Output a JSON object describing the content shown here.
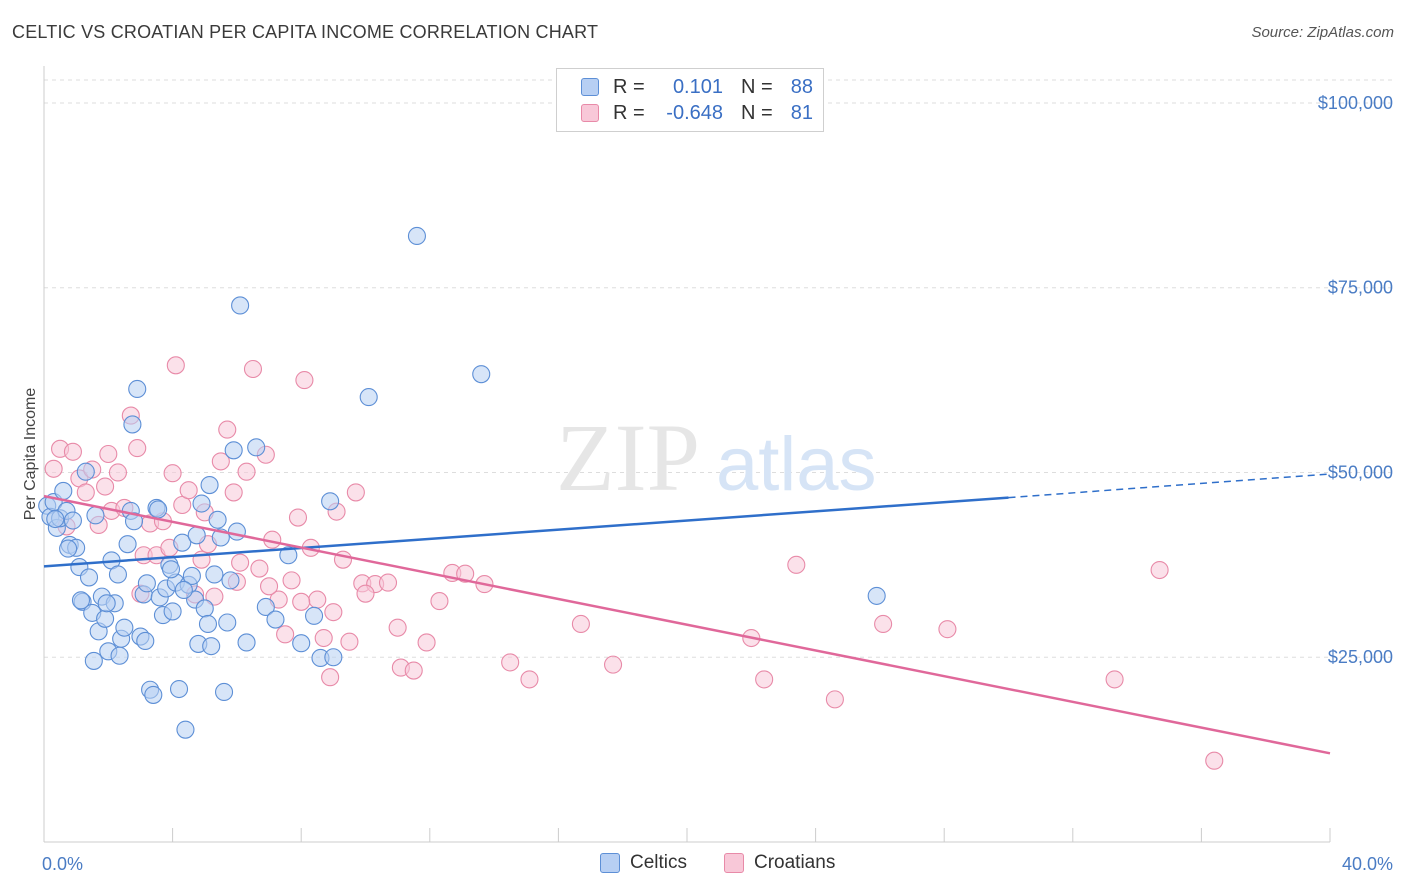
{
  "title": "CELTIC VS CROATIAN PER CAPITA INCOME CORRELATION CHART",
  "source": "Source: ZipAtlas.com",
  "watermark": {
    "zip": "ZIP",
    "atlas": "atlas"
  },
  "legend_stats": [
    {
      "r_label": "R =",
      "r_value": "0.101",
      "n_label": "N =",
      "n_value": "88"
    },
    {
      "r_label": "R =",
      "r_value": "-0.648",
      "n_label": "N =",
      "n_value": "81"
    }
  ],
  "colors": {
    "celtics_fill": "#b7cff3",
    "celtics_stroke": "#5d8fd6",
    "celtics_line": "#2f6fca",
    "croatians_fill": "#f8c8d8",
    "croatians_stroke": "#e88aa8",
    "croatians_line": "#e0689a",
    "tick_label": "#4a7cc4",
    "grid": "#dddddd"
  },
  "chart_data": {
    "type": "scatter",
    "title": "CELTIC VS CROATIAN PER CAPITA INCOME CORRELATION CHART",
    "xlabel": "",
    "ylabel": "Per Capita Income",
    "xlim": [
      0,
      40
    ],
    "ylim": [
      0,
      105000
    ],
    "x_tick_labels": [
      "0.0%",
      "40.0%"
    ],
    "y_ticks": [
      25000,
      50000,
      75000,
      100000
    ],
    "y_tick_labels": [
      "$25,000",
      "$50,000",
      "$75,000",
      "$100,000"
    ],
    "grid": true,
    "legend_position": "bottom",
    "series": [
      {
        "name": "Celtics",
        "r": 0.101,
        "n": 88,
        "trend": {
          "x": [
            0,
            30,
            40
          ],
          "y": [
            37300,
            46600,
            49800
          ],
          "dashed_after_x": 30
        },
        "points": [
          [
            0.1,
            45500
          ],
          [
            0.2,
            44000
          ],
          [
            0.3,
            46000
          ],
          [
            0.4,
            42500
          ],
          [
            0.5,
            43800
          ],
          [
            0.6,
            47500
          ],
          [
            0.7,
            44800
          ],
          [
            0.8,
            40200
          ],
          [
            0.9,
            43500
          ],
          [
            1.0,
            39800
          ],
          [
            1.1,
            37200
          ],
          [
            1.2,
            32500
          ],
          [
            1.3,
            50100
          ],
          [
            1.4,
            35800
          ],
          [
            1.5,
            31000
          ],
          [
            1.6,
            44200
          ],
          [
            1.7,
            28500
          ],
          [
            1.8,
            33200
          ],
          [
            1.9,
            30200
          ],
          [
            2.0,
            25800
          ],
          [
            2.1,
            38100
          ],
          [
            2.2,
            32300
          ],
          [
            2.3,
            36200
          ],
          [
            2.4,
            27500
          ],
          [
            2.5,
            29000
          ],
          [
            2.6,
            40300
          ],
          [
            2.7,
            44800
          ],
          [
            2.8,
            43400
          ],
          [
            2.9,
            61300
          ],
          [
            3.0,
            27800
          ],
          [
            3.1,
            33500
          ],
          [
            3.2,
            35000
          ],
          [
            3.3,
            20600
          ],
          [
            3.4,
            19900
          ],
          [
            3.5,
            45200
          ],
          [
            3.6,
            33100
          ],
          [
            3.7,
            30700
          ],
          [
            3.8,
            34300
          ],
          [
            3.9,
            37500
          ],
          [
            4.0,
            31200
          ],
          [
            4.1,
            35100
          ],
          [
            4.2,
            20700
          ],
          [
            4.3,
            40500
          ],
          [
            4.4,
            15200
          ],
          [
            4.5,
            34800
          ],
          [
            4.6,
            36000
          ],
          [
            4.7,
            32800
          ],
          [
            4.8,
            26800
          ],
          [
            4.9,
            45800
          ],
          [
            5.0,
            31600
          ],
          [
            5.1,
            29500
          ],
          [
            5.2,
            26500
          ],
          [
            5.3,
            36200
          ],
          [
            5.4,
            43600
          ],
          [
            5.5,
            41200
          ],
          [
            5.6,
            20300
          ],
          [
            5.7,
            29700
          ],
          [
            5.8,
            35400
          ],
          [
            5.9,
            53000
          ],
          [
            6.0,
            42000
          ],
          [
            6.1,
            72600
          ],
          [
            6.3,
            27000
          ],
          [
            6.6,
            53400
          ],
          [
            6.9,
            31800
          ],
          [
            7.2,
            30100
          ],
          [
            7.6,
            38800
          ],
          [
            8.0,
            26900
          ],
          [
            8.4,
            30600
          ],
          [
            8.9,
            46100
          ],
          [
            10.1,
            60200
          ],
          [
            11.6,
            82000
          ],
          [
            13.6,
            63300
          ],
          [
            25.9,
            33300
          ],
          [
            0.35,
            43700
          ],
          [
            0.75,
            39700
          ],
          [
            1.15,
            32700
          ],
          [
            1.55,
            24500
          ],
          [
            1.95,
            32300
          ],
          [
            2.35,
            25200
          ],
          [
            2.75,
            56500
          ],
          [
            3.15,
            27200
          ],
          [
            3.55,
            45000
          ],
          [
            3.95,
            36900
          ],
          [
            4.35,
            34100
          ],
          [
            4.75,
            41500
          ],
          [
            5.15,
            48300
          ],
          [
            8.6,
            24900
          ],
          [
            9.0,
            25000
          ]
        ]
      },
      {
        "name": "Croatians",
        "r": -0.648,
        "n": 81,
        "trend": {
          "x": [
            0,
            40
          ],
          "y": [
            46800,
            12000
          ]
        },
        "points": [
          [
            0.3,
            50500
          ],
          [
            0.5,
            53200
          ],
          [
            0.7,
            42700
          ],
          [
            0.9,
            52800
          ],
          [
            1.1,
            49200
          ],
          [
            1.3,
            47300
          ],
          [
            1.5,
            50400
          ],
          [
            1.7,
            42900
          ],
          [
            1.9,
            48100
          ],
          [
            2.1,
            44800
          ],
          [
            2.3,
            50000
          ],
          [
            2.5,
            45200
          ],
          [
            2.7,
            57700
          ],
          [
            2.9,
            53300
          ],
          [
            3.1,
            38800
          ],
          [
            3.3,
            43100
          ],
          [
            3.5,
            38800
          ],
          [
            3.7,
            43400
          ],
          [
            3.9,
            39800
          ],
          [
            4.1,
            64500
          ],
          [
            4.3,
            45600
          ],
          [
            4.5,
            47600
          ],
          [
            4.7,
            33500
          ],
          [
            4.9,
            38200
          ],
          [
            5.1,
            40300
          ],
          [
            5.3,
            33200
          ],
          [
            5.5,
            51500
          ],
          [
            5.7,
            55800
          ],
          [
            5.9,
            47300
          ],
          [
            6.1,
            37800
          ],
          [
            6.3,
            50100
          ],
          [
            6.5,
            64000
          ],
          [
            6.7,
            37000
          ],
          [
            6.9,
            52400
          ],
          [
            7.1,
            40900
          ],
          [
            7.3,
            32800
          ],
          [
            7.5,
            28100
          ],
          [
            7.7,
            35400
          ],
          [
            7.9,
            43900
          ],
          [
            8.1,
            62500
          ],
          [
            8.3,
            39800
          ],
          [
            8.5,
            32800
          ],
          [
            8.7,
            27600
          ],
          [
            8.9,
            22300
          ],
          [
            9.1,
            44700
          ],
          [
            9.3,
            38200
          ],
          [
            9.5,
            27100
          ],
          [
            9.7,
            47300
          ],
          [
            9.9,
            35000
          ],
          [
            10.3,
            34900
          ],
          [
            10.7,
            35100
          ],
          [
            11.1,
            23600
          ],
          [
            11.5,
            23200
          ],
          [
            11.9,
            27000
          ],
          [
            12.3,
            32600
          ],
          [
            12.7,
            36400
          ],
          [
            13.1,
            36300
          ],
          [
            13.7,
            34900
          ],
          [
            14.5,
            24300
          ],
          [
            15.1,
            22000
          ],
          [
            16.7,
            29500
          ],
          [
            17.7,
            24000
          ],
          [
            22.0,
            27600
          ],
          [
            22.4,
            22000
          ],
          [
            23.4,
            37500
          ],
          [
            24.6,
            19300
          ],
          [
            26.1,
            29500
          ],
          [
            28.1,
            28800
          ],
          [
            33.3,
            22000
          ],
          [
            34.7,
            36800
          ],
          [
            36.4,
            11000
          ],
          [
            2.0,
            52500
          ],
          [
            3.0,
            33600
          ],
          [
            4.0,
            49900
          ],
          [
            5.0,
            44600
          ],
          [
            6.0,
            35200
          ],
          [
            7.0,
            34600
          ],
          [
            8.0,
            32500
          ],
          [
            9.0,
            31100
          ],
          [
            10.0,
            33600
          ],
          [
            11.0,
            29000
          ]
        ]
      }
    ]
  }
}
